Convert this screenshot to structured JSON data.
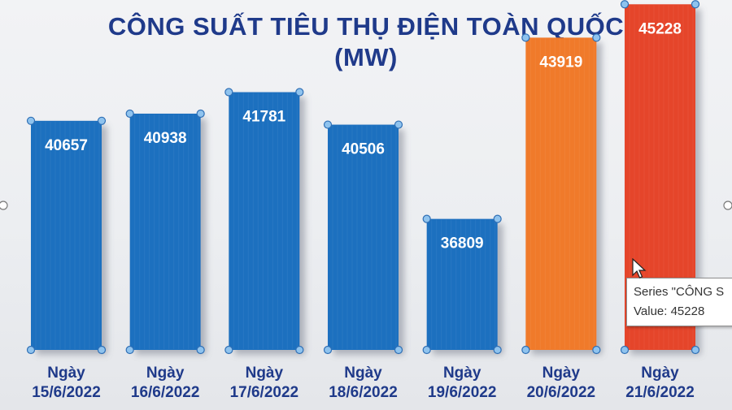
{
  "chart_data": {
    "type": "bar",
    "title": [
      "CÔNG SUẤT TIÊU THỤ ĐIỆN TOÀN QUỐC",
      "(MW)"
    ],
    "categories": [
      [
        "Ngày",
        "15/6/2022"
      ],
      [
        "Ngày",
        "16/6/2022"
      ],
      [
        "Ngày",
        "17/6/2022"
      ],
      [
        "Ngày",
        "18/6/2022"
      ],
      [
        "Ngày",
        "19/6/2022"
      ],
      [
        "Ngày",
        "20/6/2022"
      ],
      [
        "Ngày",
        "21/6/2022"
      ]
    ],
    "values": [
      40657,
      40938,
      41781,
      40506,
      36809,
      43919,
      45228
    ],
    "bar_colors": [
      "#1f6fbf",
      "#1f6fbf",
      "#1f6fbf",
      "#1f6fbf",
      "#1f6fbf",
      "#f07a2a",
      "#e5452b"
    ],
    "selected_bar_index": 6,
    "category_label_color": "#1f3a8a",
    "grid": false,
    "legend": false
  },
  "tooltip": {
    "line1": "Series \"CÔNG S",
    "line2": "Value: 45228"
  }
}
